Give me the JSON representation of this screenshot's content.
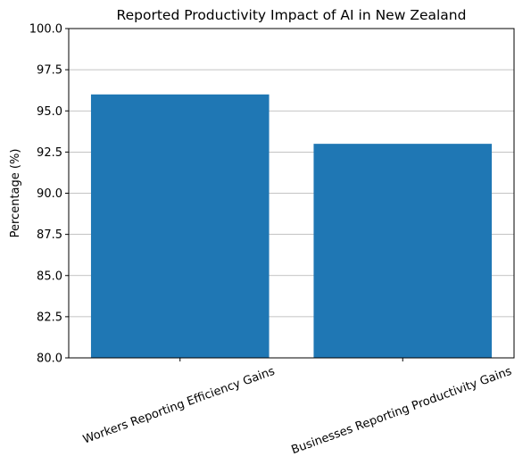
{
  "chart_data": {
    "type": "bar",
    "title": "Reported Productivity Impact of AI in New Zealand",
    "xlabel": "",
    "ylabel": "Percentage (%)",
    "categories": [
      "Workers Reporting Efficiency Gains",
      "Businesses Reporting Productivity Gains"
    ],
    "values": [
      96,
      93
    ],
    "ylim": [
      80,
      100
    ],
    "yticks": [
      "80.0",
      "82.5",
      "85.0",
      "87.5",
      "90.0",
      "92.5",
      "95.0",
      "97.5",
      "100.0"
    ],
    "grid": "horizontal",
    "bar_color": "#1f77b4",
    "x_tick_rotation_deg": 20
  }
}
